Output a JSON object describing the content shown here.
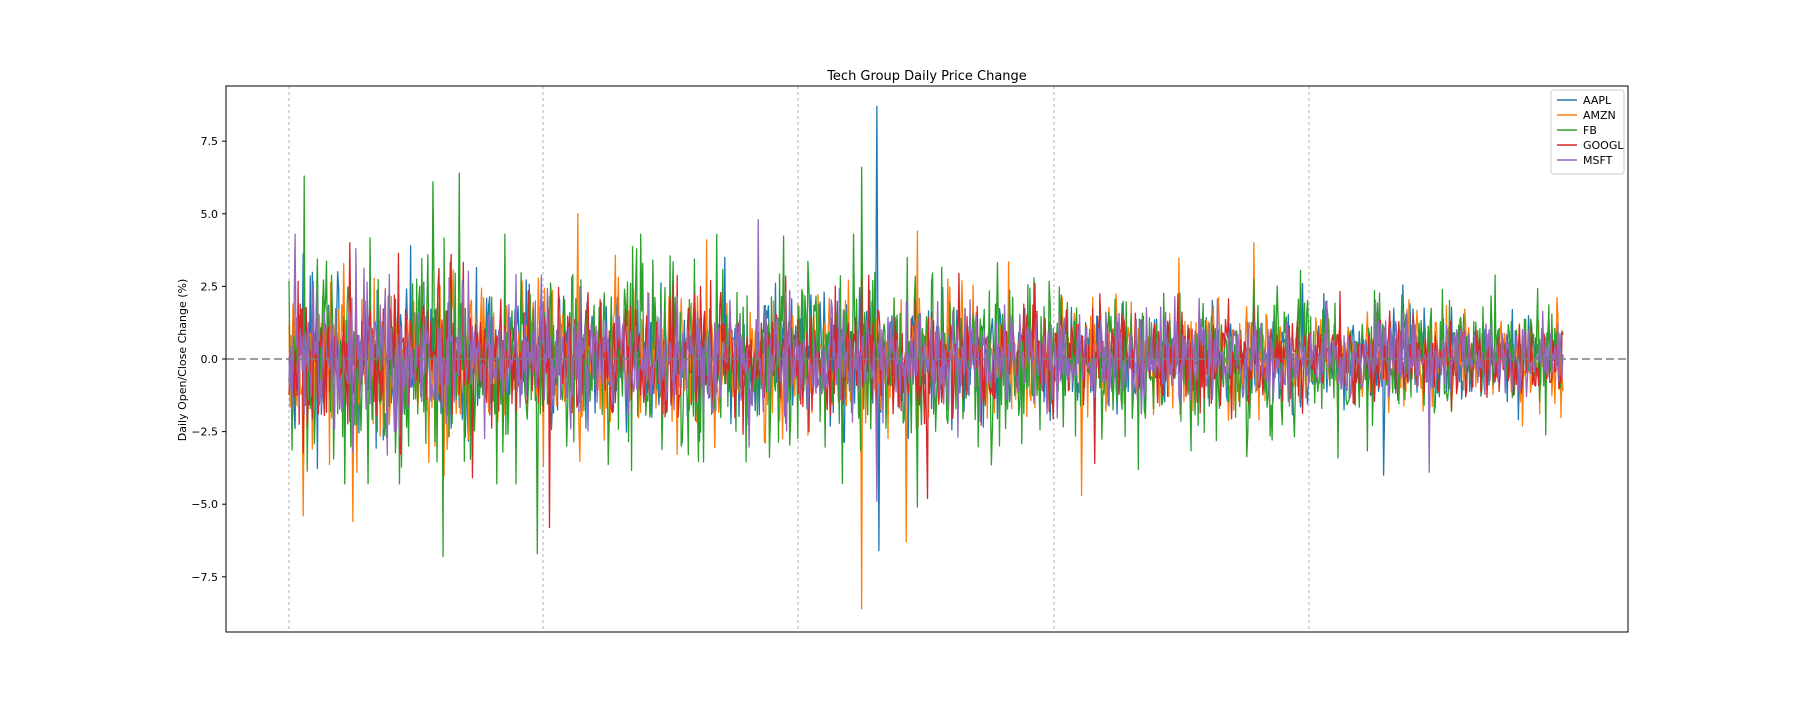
{
  "chart_data": {
    "type": "line",
    "title": "Tech Group Daily Price Change",
    "xlabel": "",
    "ylabel": "Daily Open/Close Change (%)",
    "ylim": [
      -9.4,
      9.4
    ],
    "y_ticks": [
      -7.5,
      -5.0,
      -2.5,
      0.0,
      2.5,
      5.0,
      7.5
    ],
    "y_tick_labels": [
      "−7.5",
      "−5.0",
      "−2.5",
      "0.0",
      "2.5",
      "5.0",
      "7.5"
    ],
    "x_tick_labels": [],
    "x_gridlines": "vertical dashed lines at five unlabeled x positions",
    "zero_reference_line": 0.0,
    "grid": "vertical dashed",
    "legend_position": "top-right",
    "n_points": 1258,
    "series": [
      {
        "name": "AAPL",
        "color": "#1f77b4",
        "sample_points": [
          [
            0,
            -0.8
          ],
          [
            120,
            3.9
          ],
          [
            430,
            3.5
          ],
          [
            580,
            8.7
          ],
          [
            582,
            -6.6
          ],
          [
            1000,
            2.6
          ],
          [
            1080,
            -4.0
          ],
          [
            1250,
            -0.3
          ]
        ]
      },
      {
        "name": "AMZN",
        "color": "#ff7f0e",
        "sample_points": [
          [
            14,
            -5.4
          ],
          [
            63,
            -5.6
          ],
          [
            285,
            5.0
          ],
          [
            412,
            4.1
          ],
          [
            565,
            -8.6
          ],
          [
            609,
            -6.3
          ],
          [
            620,
            4.4
          ],
          [
            782,
            -4.7
          ],
          [
            952,
            4.0
          ],
          [
            1257,
            -1.1
          ]
        ]
      },
      {
        "name": "FB",
        "color": "#2ca02c",
        "sample_points": [
          [
            15,
            6.3
          ],
          [
            142,
            6.1
          ],
          [
            152,
            -6.8
          ],
          [
            168,
            6.4
          ],
          [
            245,
            -6.7
          ],
          [
            565,
            6.6
          ],
          [
            620,
            -5.1
          ],
          [
            1250,
            0.2
          ]
        ]
      },
      {
        "name": "GOOGL",
        "color": "#d62728",
        "sample_points": [
          [
            60,
            4.0
          ],
          [
            160,
            3.6
          ],
          [
            257,
            -5.8
          ],
          [
            580,
            -4.4
          ],
          [
            630,
            -4.8
          ],
          [
            795,
            -3.6
          ],
          [
            1250,
            -0.4
          ]
        ]
      },
      {
        "name": "MSFT",
        "color": "#9467bd",
        "sample_points": [
          [
            66,
            3.8
          ],
          [
            287,
            2.5
          ],
          [
            463,
            4.8
          ],
          [
            580,
            -4.9
          ],
          [
            1125,
            -3.9
          ],
          [
            1250,
            -0.3
          ]
        ]
      }
    ]
  }
}
